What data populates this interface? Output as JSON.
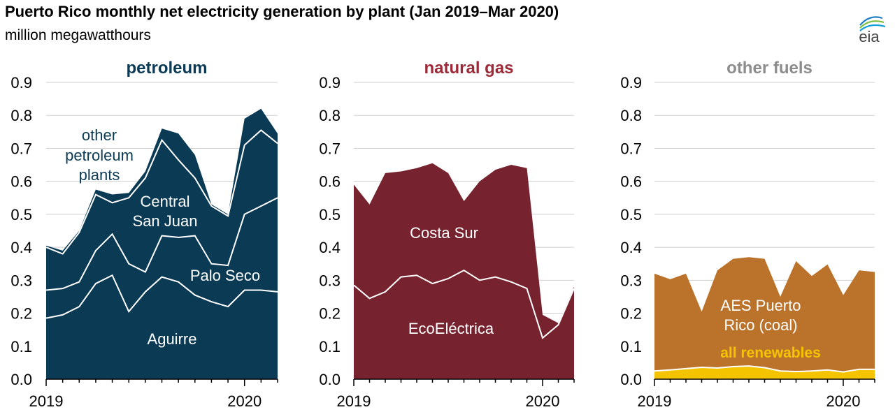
{
  "header": {
    "title": "Puerto Rico monthly net electricity generation by plant (Jan 2019–Mar 2020)",
    "subtitle": "million megawatthours",
    "logo_text": "eia"
  },
  "chart_data": [
    {
      "type": "area",
      "stacked": true,
      "title": "petroleum",
      "title_color": "#0b3a55",
      "fill_color": "#0b3a55",
      "line_color": "#ffffff",
      "x": [
        "2019-01",
        "2019-02",
        "2019-03",
        "2019-04",
        "2019-05",
        "2019-06",
        "2019-07",
        "2019-08",
        "2019-09",
        "2019-10",
        "2019-11",
        "2019-12",
        "2020-01",
        "2020-02",
        "2020-03"
      ],
      "x_tick_labels": [
        "2019",
        "2020"
      ],
      "ylim": [
        0,
        0.9
      ],
      "yticks": [
        "0.0",
        "0.1",
        "0.2",
        "0.3",
        "0.4",
        "0.5",
        "0.6",
        "0.7",
        "0.8",
        "0.9"
      ],
      "grid": true,
      "series": [
        {
          "name": "Aguirre",
          "values": [
            0.185,
            0.195,
            0.22,
            0.29,
            0.315,
            0.205,
            0.265,
            0.31,
            0.295,
            0.255,
            0.235,
            0.22,
            0.27,
            0.27,
            0.265
          ]
        },
        {
          "name": "Palo Seco",
          "values": [
            0.085,
            0.08,
            0.075,
            0.1,
            0.125,
            0.145,
            0.06,
            0.125,
            0.135,
            0.18,
            0.115,
            0.125,
            0.23,
            0.255,
            0.285
          ]
        },
        {
          "name": "Central San Juan",
          "values": [
            0.13,
            0.105,
            0.15,
            0.17,
            0.095,
            0.2,
            0.285,
            0.29,
            0.235,
            0.175,
            0.175,
            0.15,
            0.21,
            0.23,
            0.165
          ]
        },
        {
          "name": "other petroleum plants",
          "values": [
            0.005,
            0.01,
            0.005,
            0.015,
            0.025,
            0.015,
            0.02,
            0.035,
            0.08,
            0.07,
            0.005,
            0.005,
            0.08,
            0.065,
            0.03
          ]
        }
      ],
      "labels": [
        {
          "text": "Aguirre",
          "color": "#ffffff"
        },
        {
          "text": "Palo Seco",
          "color": "#ffffff"
        },
        {
          "text": "Central",
          "color": "#ffffff"
        },
        {
          "text": "San Juan",
          "color": "#ffffff"
        },
        {
          "text": "other",
          "color": "#0b3a55"
        },
        {
          "text": "petroleum",
          "color": "#0b3a55"
        },
        {
          "text": "plants",
          "color": "#0b3a55"
        }
      ]
    },
    {
      "type": "area",
      "stacked": true,
      "title": "natural gas",
      "title_color": "#9c2a38",
      "fill_color": "#76232f",
      "line_color": "#ffffff",
      "x": [
        "2019-01",
        "2019-02",
        "2019-03",
        "2019-04",
        "2019-05",
        "2019-06",
        "2019-07",
        "2019-08",
        "2019-09",
        "2019-10",
        "2019-11",
        "2019-12",
        "2020-01",
        "2020-02",
        "2020-03"
      ],
      "x_tick_labels": [
        "2019",
        "2020"
      ],
      "ylim": [
        0,
        0.9
      ],
      "yticks": [
        "0.0",
        "0.1",
        "0.2",
        "0.3",
        "0.4",
        "0.5",
        "0.6",
        "0.7",
        "0.8",
        "0.9"
      ],
      "grid": true,
      "series": [
        {
          "name": "EcoEléctrica",
          "values": [
            0.285,
            0.245,
            0.265,
            0.31,
            0.315,
            0.29,
            0.305,
            0.33,
            0.3,
            0.31,
            0.295,
            0.275,
            0.125,
            0.165,
            0.275
          ]
        },
        {
          "name": "Costa Sur",
          "values": [
            0.305,
            0.285,
            0.36,
            0.32,
            0.325,
            0.365,
            0.32,
            0.21,
            0.3,
            0.325,
            0.355,
            0.365,
            0.07,
            0.005,
            0.005
          ]
        }
      ],
      "labels": [
        {
          "text": "Costa Sur",
          "color": "#ffffff"
        },
        {
          "text": "EcoEléctrica",
          "color": "#ffffff"
        }
      ]
    },
    {
      "type": "area",
      "stacked": true,
      "title": "other fuels",
      "title_color": "#8c8c8c",
      "fill_color": "#bb722a",
      "line_color": "#ffffff",
      "x": [
        "2019-01",
        "2019-02",
        "2019-03",
        "2019-04",
        "2019-05",
        "2019-06",
        "2019-07",
        "2019-08",
        "2019-09",
        "2019-10",
        "2019-11",
        "2019-12",
        "2020-01",
        "2020-02",
        "2020-03"
      ],
      "x_tick_labels": [
        "2019",
        "2020"
      ],
      "ylim": [
        0,
        0.9
      ],
      "yticks": [
        "0.0",
        "0.1",
        "0.2",
        "0.3",
        "0.4",
        "0.5",
        "0.6",
        "0.7",
        "0.8",
        "0.9"
      ],
      "grid": true,
      "series": [
        {
          "name": "all renewables",
          "color": "#f5c400",
          "values": [
            0.025,
            0.028,
            0.032,
            0.036,
            0.034,
            0.038,
            0.04,
            0.035,
            0.025,
            0.023,
            0.025,
            0.028,
            0.022,
            0.03,
            0.03
          ]
        },
        {
          "name": "AES Puerto Rico (coal)",
          "color": "#bb722a",
          "values": [
            0.295,
            0.275,
            0.288,
            0.169,
            0.296,
            0.327,
            0.33,
            0.33,
            0.225,
            0.335,
            0.288,
            0.32,
            0.233,
            0.3,
            0.295
          ]
        }
      ],
      "labels": [
        {
          "text": "AES Puerto",
          "color": "#ffffff"
        },
        {
          "text": "Rico (coal)",
          "color": "#ffffff"
        },
        {
          "text": "all renewables",
          "color": "#f5c400"
        }
      ]
    }
  ]
}
